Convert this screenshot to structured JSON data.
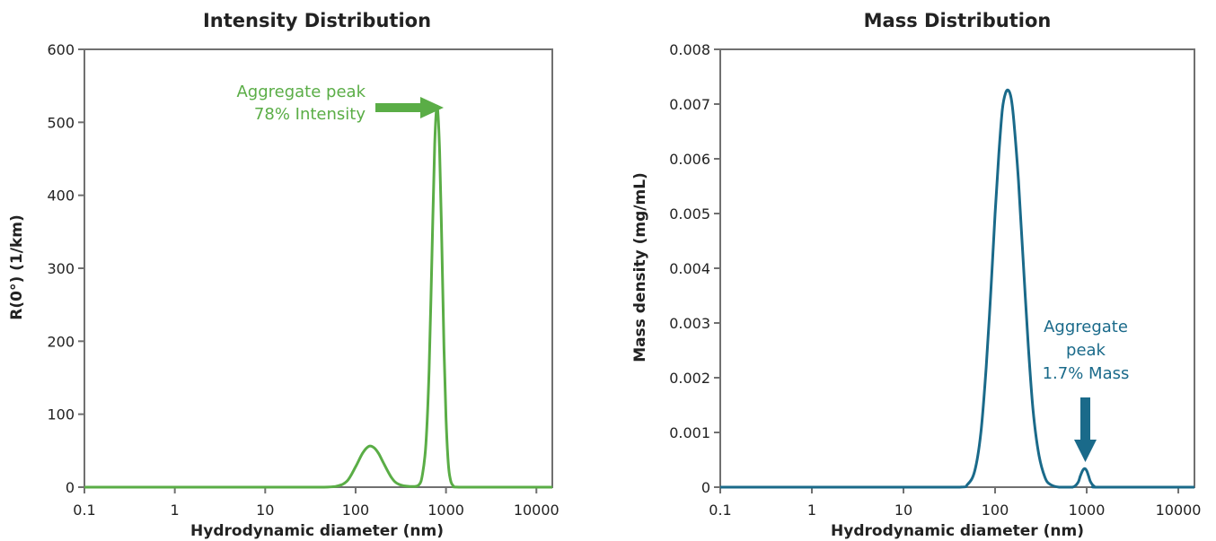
{
  "chart_data": [
    {
      "type": "line",
      "title": "Intensity Distribution",
      "xlabel": "Hydrodynamic diameter (nm)",
      "ylabel": "R(0°) (1/km)",
      "x_scale": "log",
      "xlim": [
        0.1,
        15000
      ],
      "ylim": [
        0,
        600
      ],
      "x_ticks": [
        0.1,
        1,
        10,
        100,
        1000,
        10000
      ],
      "x_tick_labels": [
        "0.1",
        "1",
        "10",
        "100",
        "1000",
        "10000"
      ],
      "y_ticks": [
        0,
        100,
        200,
        300,
        400,
        500,
        600
      ],
      "y_tick_labels": [
        "0",
        "100",
        "200",
        "300",
        "400",
        "500",
        "600"
      ],
      "grid": false,
      "color": "#5aad46",
      "series": [
        {
          "x": [
            0.1,
            1,
            10,
            40,
            60,
            80,
            100,
            120,
            140,
            160,
            180,
            200,
            250,
            300,
            400,
            500,
            550,
            600,
            650,
            700,
            750,
            800,
            850,
            900,
            950,
            1000,
            1050,
            1100,
            1200,
            1500,
            10000,
            15000
          ],
          "y": [
            0,
            0,
            0,
            0,
            1,
            8,
            28,
            47,
            56,
            54,
            46,
            35,
            13,
            4,
            1,
            3,
            18,
            60,
            160,
            320,
            470,
            522,
            460,
            330,
            190,
            95,
            40,
            15,
            2,
            0,
            0,
            0
          ]
        }
      ],
      "annotations": [
        {
          "lines": [
            "Aggregate peak",
            "78% Intensity"
          ],
          "arrow": "right",
          "target_x": 800,
          "target_y": 522
        }
      ]
    },
    {
      "type": "line",
      "title": "Mass Distribution",
      "xlabel": "Hydrodynamic diameter (nm)",
      "ylabel": "Mass density (mg/mL)",
      "x_scale": "log",
      "xlim": [
        0.1,
        15000
      ],
      "ylim": [
        0,
        0.008
      ],
      "x_ticks": [
        0.1,
        1,
        10,
        100,
        1000,
        10000
      ],
      "x_tick_labels": [
        "0.1",
        "1",
        "10",
        "100",
        "1000",
        "10000"
      ],
      "y_ticks": [
        0,
        0.001,
        0.002,
        0.003,
        0.004,
        0.005,
        0.006,
        0.007,
        0.008
      ],
      "y_tick_labels": [
        "0",
        "0.001",
        "0.002",
        "0.003",
        "0.004",
        "0.005",
        "0.006",
        "0.007",
        "0.008"
      ],
      "grid": false,
      "color": "#1a6a8a",
      "series": [
        {
          "x": [
            0.1,
            1,
            10,
            40,
            50,
            60,
            70,
            80,
            90,
            100,
            110,
            120,
            130,
            140,
            150,
            160,
            180,
            200,
            230,
            260,
            300,
            350,
            400,
            500,
            700,
            800,
            850,
            900,
            950,
            1000,
            1050,
            1100,
            1200,
            1400,
            10000,
            15000
          ],
          "y": [
            0,
            0,
            0,
            0,
            5e-05,
            0.0003,
            0.001,
            0.0022,
            0.0036,
            0.005,
            0.0061,
            0.0069,
            0.0072,
            0.00725,
            0.0071,
            0.0067,
            0.0056,
            0.0043,
            0.0026,
            0.0014,
            0.0006,
            0.00018,
            5e-05,
            0,
            0,
            8e-05,
            0.0002,
            0.0003,
            0.00034,
            0.0003,
            0.0002,
            0.0001,
            2e-05,
            0,
            0,
            0
          ]
        }
      ],
      "annotations": [
        {
          "lines": [
            "Aggregate",
            "peak",
            "1.7% Mass"
          ],
          "arrow": "down",
          "target_x": 950,
          "target_y": 0.00034
        }
      ]
    }
  ]
}
